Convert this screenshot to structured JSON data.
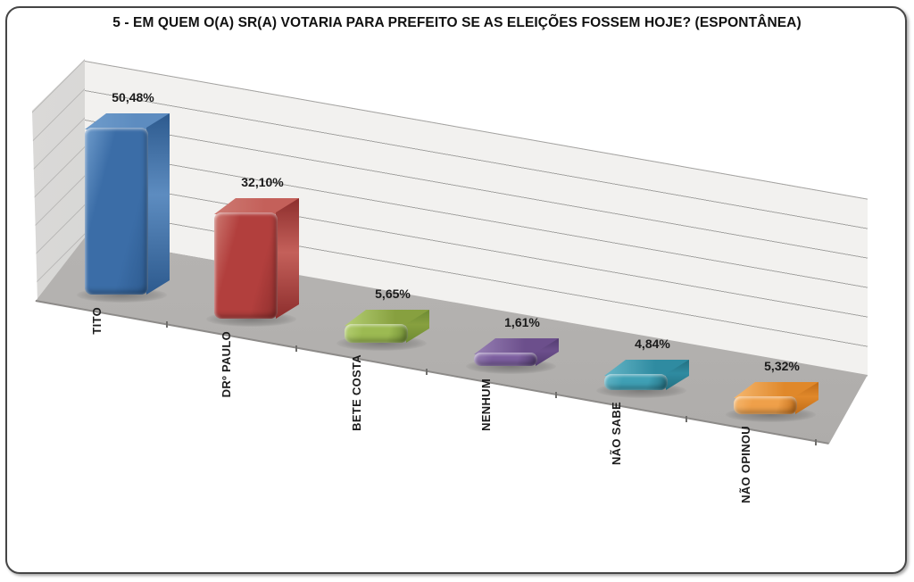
{
  "chart_data": {
    "type": "bar",
    "projection": "3d",
    "title": "5 -  EM QUEM O(A) SR(A) VOTARIA PARA PREFEITO SE AS ELEIÇÕES FOSSEM HOJE? (ESPONTÂNEA)",
    "categories": [
      "TITO",
      "DRº PAULO",
      "BETE COSTA",
      "NENHUM",
      "NÃO SABE",
      "NÃO OPINOU"
    ],
    "values": [
      50.48,
      32.1,
      5.65,
      1.61,
      4.84,
      5.32
    ],
    "value_labels": [
      "50,48%",
      "32,10%",
      "5,65%",
      "1,61%",
      "4,84%",
      "5,32%"
    ],
    "bar_colors": [
      {
        "front": "#3b6da7",
        "top": "#5d8cc0",
        "side": "#2d5a8e",
        "highlight": "#6f9ccb"
      },
      {
        "front": "#b23f3d",
        "top": "#c4605a",
        "side": "#8d2e2d",
        "highlight": "#cd7a72"
      },
      {
        "front": "#9cba52",
        "top": "#87a03f",
        "side": "#6d8a33",
        "highlight": "#b5cf74"
      },
      {
        "front": "#7d5fa0",
        "top": "#6c4f8c",
        "side": "#533c70",
        "highlight": "#9780b4"
      },
      {
        "front": "#3fa0b5",
        "top": "#2f8ba1",
        "side": "#236f80",
        "highlight": "#66b6c7"
      },
      {
        "front": "#efa04a",
        "top": "#e0882a",
        "side": "#c06c18",
        "highlight": "#f5b76f"
      }
    ],
    "ylim": [
      0,
      60
    ],
    "gridline_count": 6,
    "legend": "none",
    "xlabel": "",
    "ylabel": "",
    "wall_color": "#f2f1ef",
    "floor_color": "#b5b3b1",
    "gridline_color": "#a3a2a0",
    "label_color": "#1b1b1b"
  }
}
